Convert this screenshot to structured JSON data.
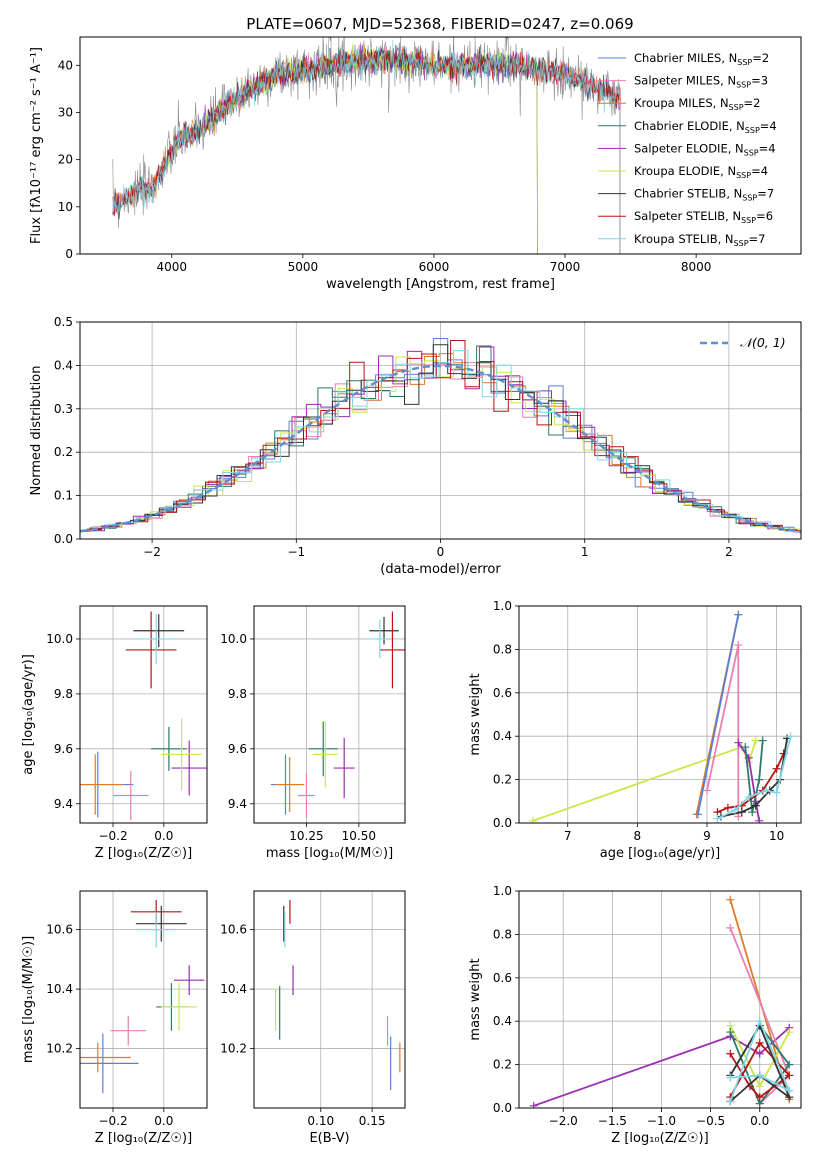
{
  "title": "PLATE=0607, MJD=52368, FIBERID=0247, z=0.069",
  "colors": {
    "Chabrier MILES": "#5b7fd6",
    "Salpeter MILES": "#e87fb0",
    "Kroupa MILES": "#e07a2a",
    "Chabrier ELODIE": "#2d7a6a",
    "Salpeter ELODIE": "#9a2db0",
    "Kroupa ELODIE": "#c7e84a",
    "Chabrier STELIB": "#333333",
    "Salpeter STELIB": "#b81414",
    "Kroupa STELIB": "#7fd6e6",
    "normal": "#5b8fd6"
  },
  "chart_data": [
    {
      "type": "line",
      "panel": "spectrum",
      "xlabel": "wavelength [Angstrom, rest frame]",
      "ylabel": "Flux [fλ10⁻¹⁷ erg cm⁻² s⁻¹ A⁻¹]",
      "xlim": [
        3300,
        8800
      ],
      "ylim": [
        0,
        46
      ],
      "xticks": [
        4000,
        5000,
        6000,
        7000,
        8000
      ],
      "yticks": [
        0,
        10,
        20,
        30,
        40
      ],
      "legend_position": "top-right",
      "legend": [
        "Chabrier MILES, N_SSP=2",
        "Salpeter MILES, N_SSP=3",
        "Kroupa MILES, N_SSP=2",
        "Chabrier ELODIE, N_SSP=4",
        "Salpeter ELODIE, N_SSP=4",
        "Kroupa ELODIE, N_SSP=4",
        "Chabrier STELIB, N_SSP=7",
        "Salpeter STELIB, N_SSP=6",
        "Kroupa STELIB, N_SSP=7"
      ],
      "legend_keys": [
        "Chabrier MILES",
        "Salpeter MILES",
        "Kroupa MILES",
        "Chabrier ELODIE",
        "Salpeter ELODIE",
        "Kroupa ELODIE",
        "Chabrier STELIB",
        "Salpeter STELIB",
        "Kroupa STELIB"
      ],
      "continuum": {
        "x": [
          3550,
          3700,
          3850,
          3950,
          4050,
          4200,
          4400,
          4600,
          4800,
          5000,
          5200,
          5400,
          5600,
          5800,
          6000,
          6200,
          6400,
          6600,
          6800,
          7000,
          7200,
          7400
        ],
        "y": [
          10,
          13,
          14,
          19,
          24,
          26,
          31,
          35,
          38,
          39,
          40,
          41,
          41,
          41,
          40,
          40,
          40,
          40,
          39,
          38,
          36,
          33
        ]
      },
      "model_ranges": {
        "Chabrier MILES": [
          3550,
          7420
        ],
        "Salpeter MILES": [
          3550,
          7420
        ],
        "Kroupa MILES": [
          3550,
          7420
        ],
        "Chabrier ELODIE": [
          3900,
          6790
        ],
        "Salpeter ELODIE": [
          3900,
          6790
        ],
        "Kroupa ELODIE": [
          3900,
          6790
        ],
        "Chabrier STELIB": [
          3550,
          7420
        ],
        "Salpeter STELIB": [
          3550,
          7420
        ],
        "Kroupa STELIB": [
          3550,
          7420
        ]
      }
    },
    {
      "type": "histogram",
      "panel": "residuals",
      "xlabel": "(data-model)/error",
      "ylabel": "Normed distribution",
      "xlim": [
        -2.5,
        2.5
      ],
      "ylim": [
        0,
        0.5
      ],
      "xticks": [
        -2,
        -1,
        0,
        1,
        2
      ],
      "yticks": [
        0.0,
        0.1,
        0.2,
        0.3,
        0.4,
        0.5
      ],
      "legend_position": "top-right",
      "legend": [
        "𝒩(0, 1)"
      ],
      "bin_width": 0.1
    },
    {
      "type": "scatter",
      "panel": "age-vs-metallicity",
      "xlabel": "Z [log₁₀(Z/Z☉)]",
      "ylabel": "age  [log₁₀(age/yr)]",
      "xlim": [
        -0.33,
        0.17
      ],
      "ylim": [
        9.33,
        10.12
      ],
      "xticks": [
        -0.2,
        0.0
      ],
      "yticks": [
        9.4,
        9.6,
        9.8,
        10.0
      ],
      "points": [
        {
          "model": "Chabrier MILES",
          "x": -0.26,
          "y": 9.47,
          "ex": 0.14,
          "ey": 0.12
        },
        {
          "model": "Salpeter MILES",
          "x": -0.13,
          "y": 9.43,
          "ex": 0.07,
          "ey": 0.09
        },
        {
          "model": "Kroupa MILES",
          "x": -0.27,
          "y": 9.47,
          "ex": 0.11,
          "ey": 0.11
        },
        {
          "model": "Chabrier ELODIE",
          "x": 0.02,
          "y": 9.6,
          "ex": 0.07,
          "ey": 0.08
        },
        {
          "model": "Salpeter ELODIE",
          "x": 0.1,
          "y": 9.53,
          "ex": 0.07,
          "ey": 0.1
        },
        {
          "model": "Kroupa ELODIE",
          "x": 0.07,
          "y": 9.58,
          "ex": 0.08,
          "ey": 0.13
        },
        {
          "model": "Chabrier STELIB",
          "x": -0.02,
          "y": 10.03,
          "ex": 0.1,
          "ey": 0.06
        },
        {
          "model": "Salpeter STELIB",
          "x": -0.05,
          "y": 9.96,
          "ex": 0.1,
          "ey": 0.14
        },
        {
          "model": "Kroupa STELIB",
          "x": -0.03,
          "y": 10.0,
          "ex": 0.08,
          "ey": 0.09
        }
      ]
    },
    {
      "type": "scatter",
      "panel": "age-vs-mass",
      "xlabel": "mass [log₁₀(M/M☉)]",
      "ylabel": "",
      "xlim": [
        10.0,
        10.72
      ],
      "ylim": [
        9.33,
        10.12
      ],
      "xticks": [
        10.25,
        10.5
      ],
      "yticks": [
        9.4,
        9.6,
        9.8,
        10.0
      ],
      "points": [
        {
          "model": "Chabrier MILES",
          "x": 10.15,
          "y": 9.47,
          "ex": 0.07,
          "ey": 0.11
        },
        {
          "model": "Salpeter MILES",
          "x": 10.25,
          "y": 9.43,
          "ex": 0.04,
          "ey": 0.08
        },
        {
          "model": "Kroupa MILES",
          "x": 10.17,
          "y": 9.47,
          "ex": 0.07,
          "ey": 0.1
        },
        {
          "model": "Chabrier ELODIE",
          "x": 10.33,
          "y": 9.6,
          "ex": 0.07,
          "ey": 0.1
        },
        {
          "model": "Salpeter ELODIE",
          "x": 10.43,
          "y": 9.53,
          "ex": 0.05,
          "ey": 0.11
        },
        {
          "model": "Kroupa ELODIE",
          "x": 10.34,
          "y": 9.58,
          "ex": 0.06,
          "ey": 0.12
        },
        {
          "model": "Chabrier STELIB",
          "x": 10.62,
          "y": 10.03,
          "ex": 0.07,
          "ey": 0.05
        },
        {
          "model": "Salpeter STELIB",
          "x": 10.66,
          "y": 9.96,
          "ex": 0.06,
          "ey": 0.14
        },
        {
          "model": "Kroupa STELIB",
          "x": 10.6,
          "y": 10.0,
          "ex": 0.05,
          "ey": 0.07
        }
      ]
    },
    {
      "type": "line",
      "panel": "mass-weight-vs-age",
      "xlabel": "age  [log₁₀(age/yr)]",
      "ylabel": "mass weight",
      "xlim": [
        6.3,
        10.35
      ],
      "ylim": [
        0,
        1.0
      ],
      "xticks": [
        7,
        8,
        9,
        10
      ],
      "yticks": [
        0.0,
        0.2,
        0.4,
        0.6,
        0.8,
        1.0
      ],
      "series": [
        {
          "model": "Kroupa ELODIE",
          "x": [
            6.5,
            9.5,
            9.6,
            9.7
          ],
          "y": [
            0.01,
            0.35,
            0.28,
            0.38
          ]
        },
        {
          "model": "Kroupa MILES",
          "x": [
            8.85,
            9.45
          ],
          "y": [
            0.04,
            0.96
          ]
        },
        {
          "model": "Chabrier MILES",
          "x": [
            8.87,
            9.45
          ],
          "y": [
            0.04,
            0.96
          ]
        },
        {
          "model": "Salpeter MILES",
          "x": [
            9.0,
            9.45,
            9.45
          ],
          "y": [
            0.15,
            0.82,
            0.03
          ]
        },
        {
          "model": "Salpeter ELODIE",
          "x": [
            9.45,
            9.6,
            9.7,
            9.75
          ],
          "y": [
            0.37,
            0.3,
            0.1,
            0.01
          ]
        },
        {
          "model": "Chabrier ELODIE",
          "x": [
            9.55,
            9.65,
            9.75,
            9.8
          ],
          "y": [
            0.35,
            0.05,
            0.2,
            0.38
          ]
        },
        {
          "model": "Salpeter STELIB",
          "x": [
            9.15,
            9.3,
            9.5,
            9.8,
            10.0,
            10.1
          ],
          "y": [
            0.05,
            0.07,
            0.08,
            0.15,
            0.25,
            0.32
          ]
        },
        {
          "model": "Chabrier STELIB",
          "x": [
            9.2,
            9.5,
            9.7,
            9.9,
            10.05,
            10.15
          ],
          "y": [
            0.03,
            0.05,
            0.08,
            0.15,
            0.2,
            0.39
          ]
        },
        {
          "model": "Kroupa STELIB",
          "x": [
            9.15,
            9.4,
            9.6,
            9.85,
            10.0,
            10.2
          ],
          "y": [
            0.02,
            0.06,
            0.12,
            0.15,
            0.14,
            0.4
          ]
        }
      ]
    },
    {
      "type": "scatter",
      "panel": "mass-vs-metallicity",
      "xlabel": "Z [log₁₀(Z/Z☉)]",
      "ylabel": "mass [log₁₀(M/M☉)]",
      "xlim": [
        -0.33,
        0.17
      ],
      "ylim": [
        10.0,
        10.73
      ],
      "xticks": [
        -0.2,
        0.0
      ],
      "yticks": [
        10.2,
        10.4,
        10.6
      ],
      "points": [
        {
          "model": "Chabrier MILES",
          "x": -0.24,
          "y": 10.15,
          "ex": 0.14,
          "ey": 0.1
        },
        {
          "model": "Salpeter MILES",
          "x": -0.14,
          "y": 10.26,
          "ex": 0.07,
          "ey": 0.05
        },
        {
          "model": "Kroupa MILES",
          "x": -0.26,
          "y": 10.17,
          "ex": 0.13,
          "ey": 0.05
        },
        {
          "model": "Chabrier ELODIE",
          "x": 0.03,
          "y": 10.34,
          "ex": 0.06,
          "ey": 0.08
        },
        {
          "model": "Salpeter ELODIE",
          "x": 0.1,
          "y": 10.43,
          "ex": 0.06,
          "ey": 0.05
        },
        {
          "model": "Kroupa ELODIE",
          "x": 0.06,
          "y": 10.34,
          "ex": 0.07,
          "ey": 0.08
        },
        {
          "model": "Chabrier STELIB",
          "x": -0.01,
          "y": 10.62,
          "ex": 0.1,
          "ey": 0.06
        },
        {
          "model": "Salpeter STELIB",
          "x": -0.03,
          "y": 10.66,
          "ex": 0.1,
          "ey": 0.04
        },
        {
          "model": "Kroupa STELIB",
          "x": -0.03,
          "y": 10.6,
          "ex": 0.08,
          "ey": 0.06
        }
      ]
    },
    {
      "type": "scatter",
      "panel": "mass-vs-extinction",
      "xlabel": "E(B-V)",
      "ylabel": "",
      "xlim": [
        0.035,
        0.182
      ],
      "ylim": [
        10.0,
        10.73
      ],
      "xticks": [
        0.1,
        0.15
      ],
      "yticks": [
        10.2,
        10.4,
        10.6
      ],
      "points": [
        {
          "model": "Chabrier MILES",
          "x": 0.168,
          "y": 10.15,
          "ex": 0,
          "ey": 0.09
        },
        {
          "model": "Salpeter MILES",
          "x": 0.165,
          "y": 10.26,
          "ex": 0,
          "ey": 0.05
        },
        {
          "model": "Kroupa MILES",
          "x": 0.177,
          "y": 10.17,
          "ex": 0,
          "ey": 0.05
        },
        {
          "model": "Chabrier ELODIE",
          "x": 0.06,
          "y": 10.32,
          "ex": 0,
          "ey": 0.09
        },
        {
          "model": "Salpeter ELODIE",
          "x": 0.073,
          "y": 10.43,
          "ex": 0,
          "ey": 0.05
        },
        {
          "model": "Kroupa ELODIE",
          "x": 0.056,
          "y": 10.33,
          "ex": 0,
          "ey": 0.07
        },
        {
          "model": "Chabrier STELIB",
          "x": 0.064,
          "y": 10.62,
          "ex": 0,
          "ey": 0.06
        },
        {
          "model": "Salpeter STELIB",
          "x": 0.07,
          "y": 10.66,
          "ex": 0,
          "ey": 0.04
        },
        {
          "model": "Kroupa STELIB",
          "x": 0.065,
          "y": 10.6,
          "ex": 0,
          "ey": 0.06
        }
      ]
    },
    {
      "type": "line",
      "panel": "mass-weight-vs-metallicity",
      "xlabel": "Z [log₁₀(Z/Z☉)]",
      "ylabel": "mass weight",
      "xlim": [
        -2.45,
        0.42
      ],
      "ylim": [
        0,
        1.0
      ],
      "xticks": [
        -2.0,
        -1.5,
        -1.0,
        -0.5,
        0.0
      ],
      "yticks": [
        0.0,
        0.2,
        0.4,
        0.6,
        0.8,
        1.0
      ],
      "series": [
        {
          "model": "Salpeter ELODIE",
          "x": [
            -2.3,
            -0.3,
            0.0,
            0.3
          ],
          "y": [
            0.01,
            0.33,
            0.25,
            0.37
          ]
        },
        {
          "model": "Kroupa MILES",
          "x": [
            -0.3,
            0.3
          ],
          "y": [
            0.96,
            0.04
          ]
        },
        {
          "model": "Salpeter MILES",
          "x": [
            -0.3,
            0.3,
            0.0
          ],
          "y": [
            0.83,
            0.15,
            0.02
          ]
        },
        {
          "model": "Kroupa ELODIE",
          "x": [
            -0.3,
            0.0,
            0.3
          ],
          "y": [
            0.38,
            0.1,
            0.35
          ]
        },
        {
          "model": "Chabrier ELODIE",
          "x": [
            -0.3,
            0.0,
            0.3,
            0.0
          ],
          "y": [
            0.35,
            0.02,
            0.2,
            0.38
          ]
        },
        {
          "model": "Salpeter STELIB",
          "x": [
            -0.3,
            -0.1,
            0.0,
            0.3,
            0.0,
            -0.3
          ],
          "y": [
            0.25,
            0.1,
            0.05,
            0.15,
            0.3,
            0.05
          ]
        },
        {
          "model": "Chabrier STELIB",
          "x": [
            -0.3,
            0.0,
            0.3,
            0.0,
            -0.3
          ],
          "y": [
            0.15,
            0.38,
            0.05,
            0.15,
            0.03
          ]
        },
        {
          "model": "Kroupa STELIB",
          "x": [
            -0.3,
            0.0,
            0.3,
            0.0,
            -0.3
          ],
          "y": [
            0.03,
            0.4,
            0.08,
            0.15,
            0.14
          ]
        }
      ]
    }
  ]
}
